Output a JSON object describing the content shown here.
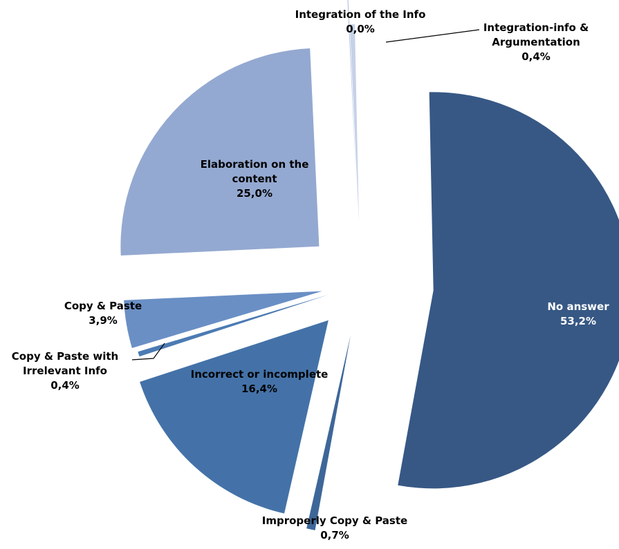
{
  "chart_data": {
    "type": "pie",
    "title": "",
    "exploded": true,
    "legend": "none",
    "slices": [
      {
        "category": "No answer",
        "value": 53.2,
        "value_label": "53,2%",
        "color": "#375885",
        "label_color": "#ffffff"
      },
      {
        "category": "Improperly Copy & Paste",
        "value": 0.7,
        "value_label": "0,7%",
        "color": "#3e6799",
        "label_color": "#000000"
      },
      {
        "category": "Incorrect or incomplete",
        "value": 16.4,
        "value_label": "16,4%",
        "color": "#4472a8",
        "label_color": "#000000"
      },
      {
        "category": "Copy & Paste with Irrelevant Info",
        "value": 0.4,
        "value_label": "0,4%",
        "color": "#4c7bb3",
        "label_color": "#000000"
      },
      {
        "category": "Copy & Paste",
        "value": 3.9,
        "value_label": "3,9%",
        "color": "#6a8fc5",
        "label_color": "#000000"
      },
      {
        "category": "Elaboration on the content",
        "value": 25.0,
        "value_label": "25,0%",
        "color": "#94a9d1",
        "label_color": "#000000"
      },
      {
        "category": "Integration of the Info",
        "value": 0.0,
        "value_label": "0,0%",
        "color": "#b3c2e0",
        "label_color": "#000000"
      },
      {
        "category": "Integration-info & Argumentation",
        "value": 0.4,
        "value_label": "0,4%",
        "color": "#c6d1e8",
        "label_color": "#000000"
      }
    ]
  }
}
